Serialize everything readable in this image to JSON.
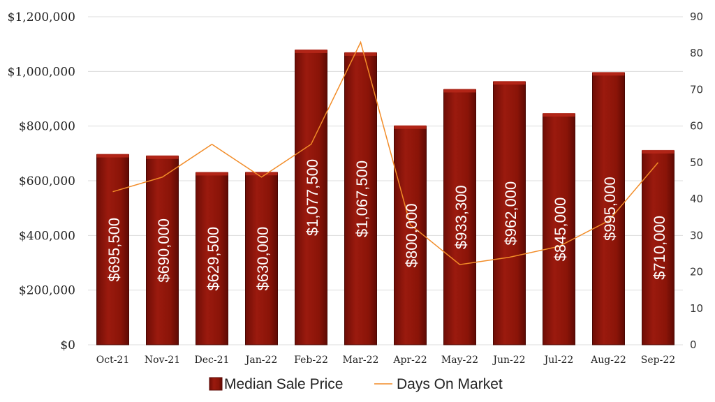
{
  "chart_data": {
    "type": "bar",
    "categories": [
      "Oct-21",
      "Nov-21",
      "Dec-21",
      "Jan-22",
      "Feb-22",
      "Mar-22",
      "Apr-22",
      "May-22",
      "Jun-22",
      "Jul-22",
      "Aug-22",
      "Sep-22"
    ],
    "series": [
      {
        "name": "Median Sale Price",
        "type": "bar",
        "axis": "left",
        "color": "#8b1309",
        "values": [
          695500,
          690000,
          629500,
          630000,
          1077500,
          1067500,
          800000,
          933300,
          962000,
          845000,
          995000,
          710000
        ],
        "labels": [
          "$695,500",
          "$690,000",
          "$629,500",
          "$630,000",
          "$1,077,500",
          "$1,067,500",
          "$800,000",
          "$933,300",
          "$962,000",
          "$845,000",
          "$995,000",
          "$710,000"
        ]
      },
      {
        "name": "Days On Market",
        "type": "line",
        "axis": "right",
        "color": "#f28c28",
        "values": [
          42,
          46,
          55,
          46,
          55,
          83,
          33,
          22,
          24,
          27,
          34,
          50
        ]
      }
    ],
    "y_left": {
      "range": [
        0,
        1200000
      ],
      "ticks": [
        0,
        200000,
        400000,
        600000,
        800000,
        1000000,
        1200000
      ],
      "tick_labels": [
        "$0",
        "$200,000",
        "$400,000",
        "$600,000",
        "$800,000",
        "$1,000,000",
        "$1,200,000"
      ]
    },
    "y_right": {
      "range": [
        0,
        90
      ],
      "ticks": [
        0,
        10,
        20,
        30,
        40,
        50,
        60,
        70,
        80,
        90
      ],
      "tick_labels": [
        "0",
        "10",
        "20",
        "30",
        "40",
        "50",
        "60",
        "70",
        "80",
        "90"
      ]
    },
    "grid": true,
    "legend": "bottom"
  }
}
